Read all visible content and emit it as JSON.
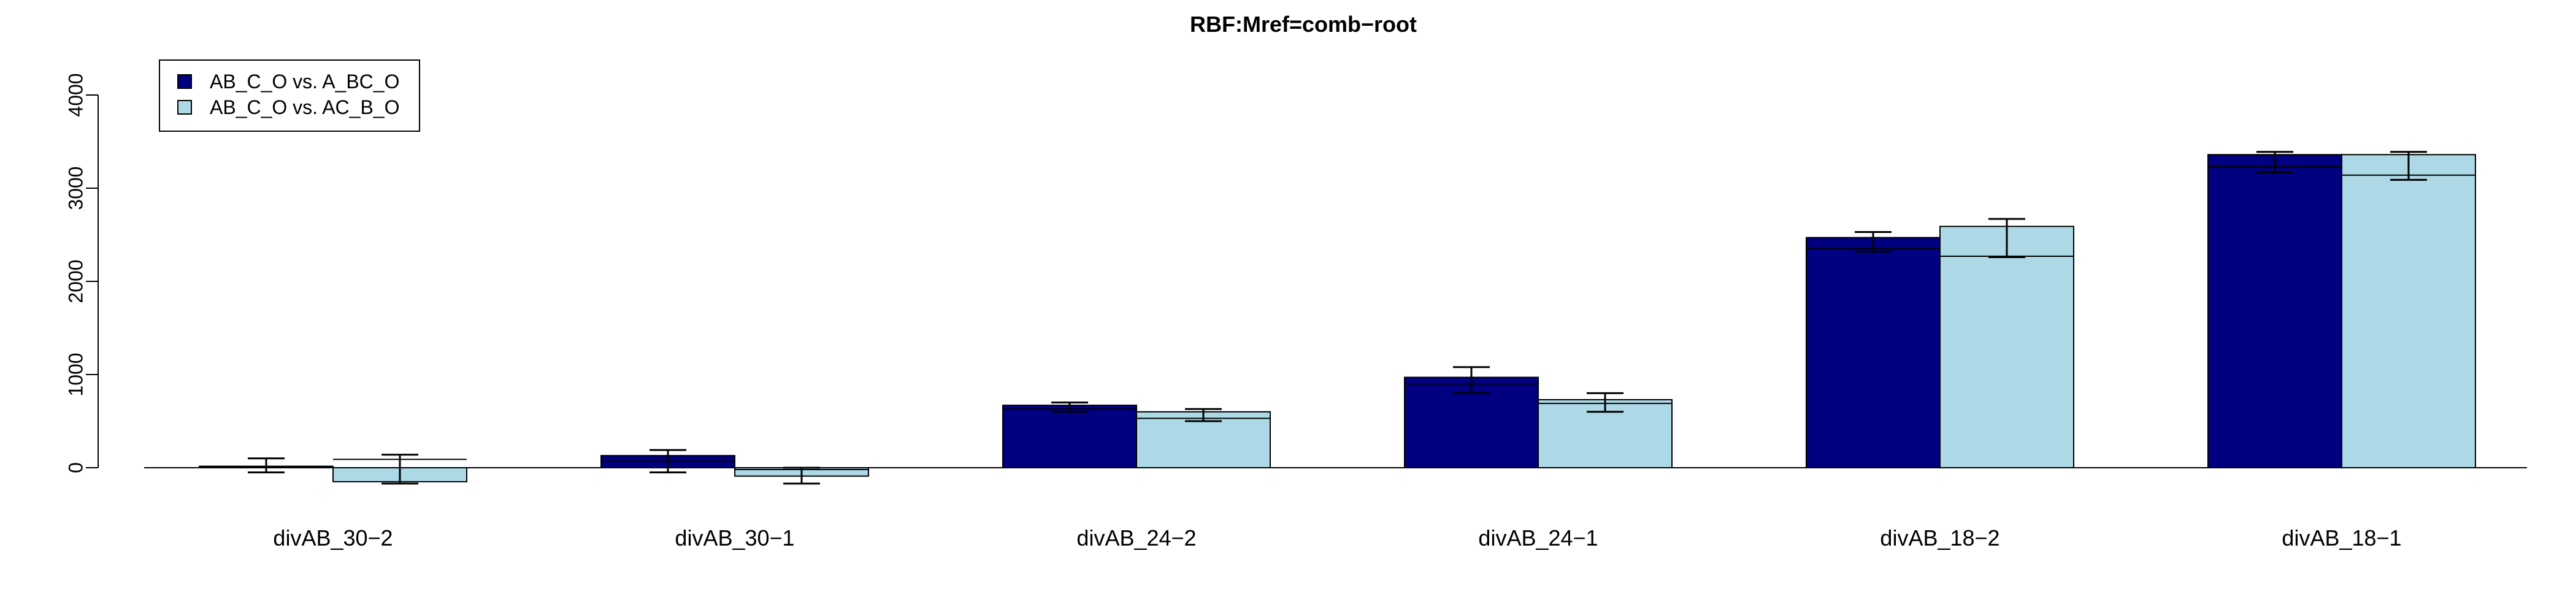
{
  "chart_data": {
    "type": "bar",
    "title": "RBF:Mref=comb−root",
    "xlabel": "",
    "ylabel": "",
    "ylim": [
      -200,
      4000
    ],
    "yticks": [
      0,
      1000,
      2000,
      3000,
      4000
    ],
    "grid": false,
    "legend_position": "top-left",
    "categories": [
      "divAB_30−2",
      "divAB_30−1",
      "divAB_24−2",
      "divAB_24−1",
      "divAB_18−2",
      "divAB_18−1"
    ],
    "series": [
      {
        "name": "AB_C_O vs. A_BC_O",
        "color": "#000080",
        "values": [
          15,
          130,
          670,
          970,
          2470,
          3360
        ],
        "inner_line": [
          15,
          70,
          630,
          900,
          2350,
          3230
        ],
        "err_high": [
          100,
          190,
          700,
          1080,
          2530,
          3390
        ],
        "err_low": [
          -50,
          -50,
          600,
          800,
          2320,
          3170
        ]
      },
      {
        "name": "AB_C_O vs. AC_B_O",
        "color": "#ADD8E6",
        "values": [
          -150,
          -90,
          600,
          730,
          2590,
          3360
        ],
        "inner_line": [
          90,
          -20,
          530,
          690,
          2270,
          3140
        ],
        "err_high": [
          140,
          0,
          630,
          800,
          2670,
          3390
        ],
        "err_low": [
          -170,
          -170,
          500,
          600,
          2260,
          3090
        ]
      }
    ]
  }
}
